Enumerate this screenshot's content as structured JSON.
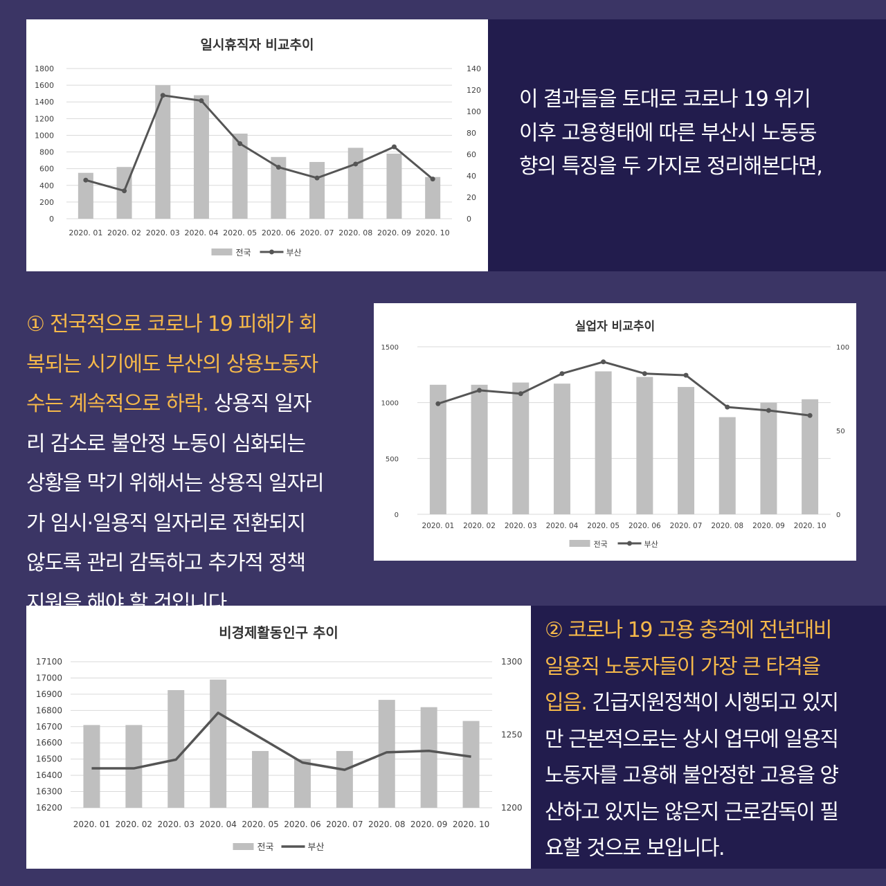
{
  "colors": {
    "background": "#3b3565",
    "dark_band": "#221c4d",
    "highlight": "#f5b84a",
    "text": "#ffffff",
    "bar": "#bfbfbf",
    "line": "#555555",
    "grid": "#d9d9d9"
  },
  "texts": {
    "intro": [
      "이 결과들을 토대로 코로나 19 위기",
      "이후 고용형태에 따른 부산시 노동동",
      "향의 특징을 두 가지로 정리해본다면,"
    ],
    "point1": {
      "lines": [
        {
          "hl": "① 전국적으로 코로나 19 피해가 회",
          "rest": ""
        },
        {
          "hl": "복되는 시기에도 부산의 상용노동자",
          "rest": ""
        },
        {
          "hl": "수는 계속적으로 하락.",
          "rest": " 상용직 일자"
        },
        {
          "hl": "",
          "rest": "리 감소로 불안정 노동이 심화되는"
        },
        {
          "hl": "",
          "rest": "상황을 막기 위해서는 상용직 일자리"
        },
        {
          "hl": "",
          "rest": "가 임시·일용직 일자리로 전환되지"
        },
        {
          "hl": "",
          "rest": "않도록 관리 감독하고 추가적 정책"
        },
        {
          "hl": "",
          "rest": "지원을 해야 할 것입니다."
        }
      ]
    },
    "point2": {
      "lines": [
        {
          "hl": "② 코로나 19 고용 충격에 전년대비",
          "rest": ""
        },
        {
          "hl": "일용직 노동자들이 가장 큰 타격을",
          "rest": ""
        },
        {
          "hl": "입음.",
          "rest": " 긴급지원정책이 시행되고 있지"
        },
        {
          "hl": "",
          "rest": "만 근본적으로는 상시 업무에 일용직"
        },
        {
          "hl": "",
          "rest": "노동자를 고용해 불안정한 고용을 양"
        },
        {
          "hl": "",
          "rest": "산하고 있지는 않은지 근로감독이 필"
        },
        {
          "hl": "",
          "rest": "요할 것으로 보입니다."
        }
      ]
    }
  },
  "chart_data": [
    {
      "type": "bar",
      "title": "일시휴직자 비교추이",
      "categories": [
        "2020. 01",
        "2020. 02",
        "2020. 03",
        "2020. 04",
        "2020. 05",
        "2020. 06",
        "2020. 07",
        "2020. 08",
        "2020. 09",
        "2020. 10"
      ],
      "series": [
        {
          "name": "전국",
          "type": "bar",
          "axis": "left",
          "values": [
            550,
            620,
            1600,
            1480,
            1020,
            740,
            680,
            850,
            780,
            500
          ]
        },
        {
          "name": "부산",
          "type": "line",
          "axis": "right",
          "values": [
            36,
            26,
            115,
            110,
            70,
            48,
            38,
            51,
            67,
            37
          ]
        }
      ],
      "ylim": [
        0,
        1800
      ],
      "yticks": [
        "0",
        "200",
        "400",
        "600",
        "800",
        "1000",
        "1200",
        "1400",
        "1600",
        "1800"
      ],
      "y2lim": [
        0,
        140
      ],
      "y2ticks": [
        "0",
        "20",
        "40",
        "60",
        "80",
        "100",
        "120",
        "140"
      ],
      "grid": true,
      "legend": "bottom"
    },
    {
      "type": "bar",
      "title": "실업자 비교추이",
      "categories": [
        "2020. 01",
        "2020. 02",
        "2020. 03",
        "2020. 04",
        "2020. 05",
        "2020. 06",
        "2020. 07",
        "2020. 08",
        "2020. 09",
        "2020. 10"
      ],
      "series": [
        {
          "name": "전국",
          "type": "bar",
          "axis": "left",
          "values": [
            1160,
            1160,
            1180,
            1170,
            1280,
            1230,
            1140,
            870,
            1000,
            1030
          ]
        },
        {
          "name": "부산",
          "type": "line",
          "axis": "right",
          "values": [
            66,
            74,
            72,
            84,
            91,
            84,
            83,
            64,
            62,
            59
          ]
        }
      ],
      "ylim": [
        0,
        1500
      ],
      "yticks": [
        "0",
        "500",
        "1000",
        "1500"
      ],
      "y2lim": [
        0,
        100
      ],
      "y2ticks": [
        "0",
        "50",
        "100"
      ],
      "grid": true,
      "legend": "bottom"
    },
    {
      "type": "bar",
      "title": "비경제활동인구 추이",
      "categories": [
        "2020. 01",
        "2020. 02",
        "2020. 03",
        "2020. 04",
        "2020. 05",
        "2020. 06",
        "2020. 07",
        "2020. 08",
        "2020. 09",
        "2020. 10"
      ],
      "series": [
        {
          "name": "전국",
          "type": "bar",
          "axis": "left",
          "values": [
            16710,
            16710,
            16925,
            16990,
            16550,
            16500,
            16550,
            16865,
            16820,
            16735
          ]
        },
        {
          "name": "부산",
          "type": "line",
          "axis": "right",
          "values": [
            1227,
            1227,
            1233,
            1265,
            1248,
            1231,
            1226,
            1238,
            1239,
            1235
          ]
        }
      ],
      "ylim": [
        16200,
        17100
      ],
      "yticks": [
        "16200",
        "16300",
        "16400",
        "16500",
        "16600",
        "16700",
        "16800",
        "16900",
        "17000",
        "17100"
      ],
      "y2lim": [
        1200,
        1300
      ],
      "y2ticks": [
        "1200",
        "1250",
        "1300"
      ],
      "grid": true,
      "legend": "bottom"
    }
  ]
}
